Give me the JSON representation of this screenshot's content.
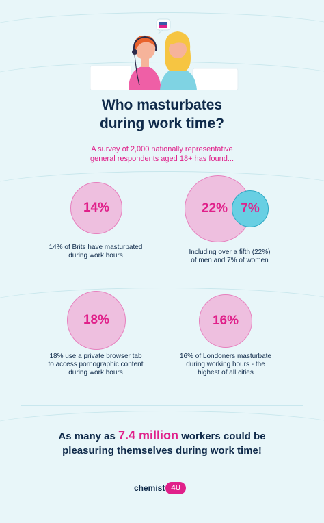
{
  "title": {
    "line1": "Who masturbates",
    "line2": "during work time?"
  },
  "subtitle": {
    "line1": "A survey of 2,000 nationally representative",
    "line2": "general respondents aged 18+ has found..."
  },
  "stats": {
    "s1": {
      "value": "14%",
      "caption_line1": "14% of Brits have masturbated",
      "caption_line2": "during work hours"
    },
    "s2": {
      "value": "22%",
      "value2": "7%",
      "caption_line1": "Including over a fifth (22%)",
      "caption_line2": "of men and 7% of women"
    },
    "s3": {
      "value": "18%",
      "caption_line1": "18% use a private browser tab",
      "caption_line2": "to access pornographic content",
      "caption_line3": "during work hours"
    },
    "s4": {
      "value": "16%",
      "caption_line1": "16% of Londoners masturbate",
      "caption_line2": "during working hours - the",
      "caption_line3": "highest of all cities"
    }
  },
  "conclusion": {
    "prefix": "As many as",
    "highlight": "7.4 million",
    "suffix": "workers could be",
    "line2": "pleasuring themselves during work time!"
  },
  "logo": {
    "text": "chemist",
    "badge": "4U"
  },
  "colors": {
    "background": "#e8f6f9",
    "navy": "#0f2a4a",
    "pink": "#e0208a",
    "circle_pink": "#eebfdf",
    "circle_teal": "#68cfe3"
  }
}
